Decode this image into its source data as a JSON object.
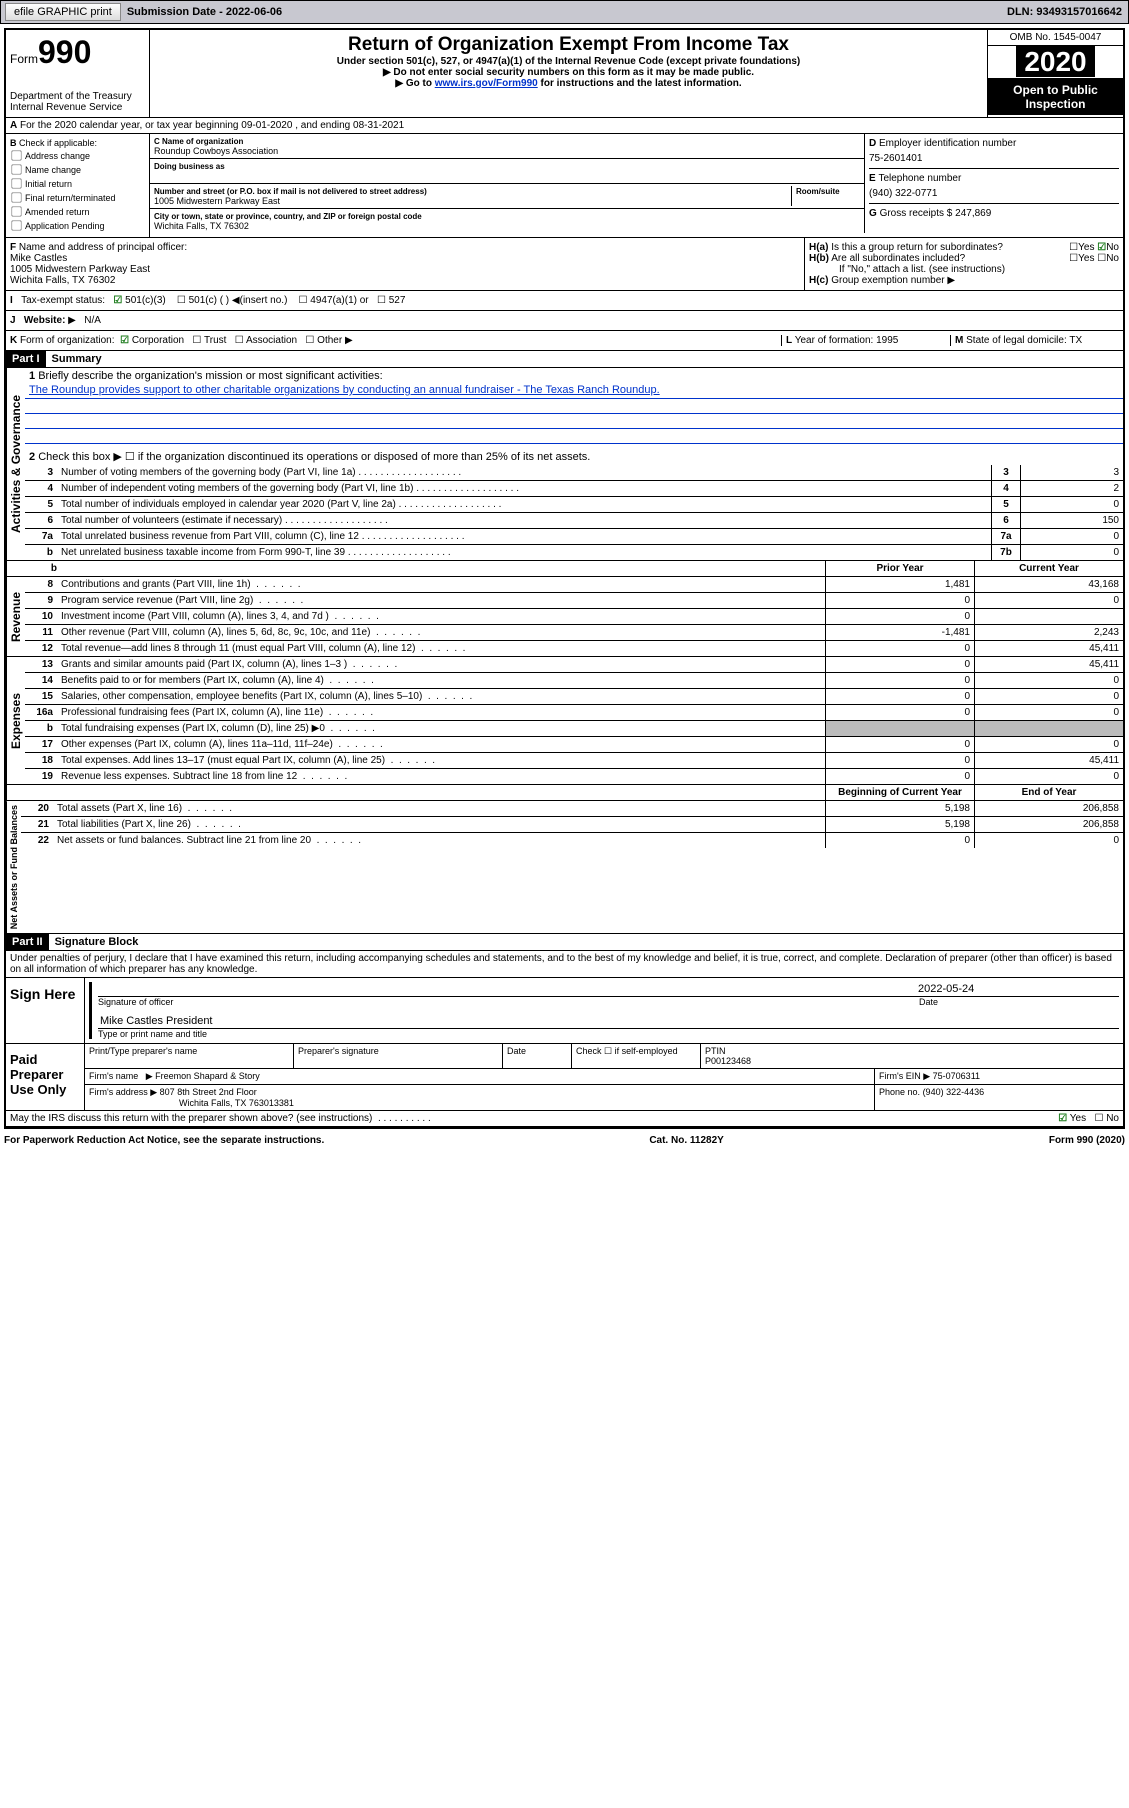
{
  "top": {
    "efile": "efile GRAPHIC print",
    "subLabel": "Submission Date - 2022-06-06",
    "dln": "DLN: 93493157016642"
  },
  "header": {
    "formWord": "Form",
    "formNum": "990",
    "dept": "Department of the Treasury\nInternal Revenue Service",
    "title": "Return of Organization Exempt From Income Tax",
    "line1": "Under section 501(c), 527, or 4947(a)(1) of the Internal Revenue Code (except private foundations)",
    "line2": "Do not enter social security numbers on this form as it may be made public.",
    "line3pre": "Go to ",
    "line3link": "www.irs.gov/Form990",
    "line3post": " for instructions and the latest information.",
    "omb": "OMB No. 1545-0047",
    "year": "2020",
    "inspection": "Open to Public Inspection"
  },
  "a": {
    "text": "For the 2020 calendar year, or tax year beginning 09-01-2020   , and ending 08-31-2021"
  },
  "b": {
    "label": "Check if applicable:",
    "items": [
      "Address change",
      "Name change",
      "Initial return",
      "Final return/terminated",
      "Amended return",
      "Application Pending"
    ]
  },
  "c": {
    "nameLbl": "Name of organization",
    "name": "Roundup Cowboys Association",
    "dbaLbl": "Doing business as",
    "dba": "",
    "streetLbl": "Number and street (or P.O. box if mail is not delivered to street address)",
    "roomLbl": "Room/suite",
    "street": "1005 Midwestern Parkway East",
    "cityLbl": "City or town, state or province, country, and ZIP or foreign postal code",
    "city": "Wichita Falls, TX  76302"
  },
  "d": {
    "lbl": "Employer identification number",
    "val": "75-2601401"
  },
  "e": {
    "lbl": "Telephone number",
    "val": "(940) 322-0771"
  },
  "g": {
    "lbl": "Gross receipts $",
    "val": "247,869"
  },
  "f": {
    "lbl": "Name and address of principal officer:",
    "name": "Mike Castles",
    "addr1": "1005 Midwestern Parkway East",
    "addr2": "Wichita Falls, TX  76302"
  },
  "h": {
    "a": "Is this a group return for subordinates?",
    "aYes": "Yes",
    "aNo": "No",
    "b": "Are all subordinates included?",
    "bYes": "Yes",
    "bNo": "No",
    "note": "If \"No,\" attach a list. (see instructions)",
    "c": "Group exemption number"
  },
  "i": {
    "lbl": "Tax-exempt status:",
    "o1": "501(c)(3)",
    "o2": "501(c) (  )",
    "insert": "(insert no.)",
    "o3": "4947(a)(1) or",
    "o4": "527"
  },
  "j": {
    "lbl": "Website:",
    "val": "N/A"
  },
  "k": {
    "lbl": "Form of organization:",
    "o1": "Corporation",
    "o2": "Trust",
    "o3": "Association",
    "o4": "Other"
  },
  "l": {
    "lbl": "Year of formation:",
    "val": "1995"
  },
  "m": {
    "lbl": "State of legal domicile:",
    "val": "TX"
  },
  "part1": {
    "num": "Part I",
    "title": "Summary"
  },
  "gov": {
    "label": "Activities & Governance",
    "l1": "Briefly describe the organization's mission or most significant activities:",
    "mission": "The Roundup provides support to other charitable organizations by conducting an annual fundraiser - The Texas Ranch Roundup.",
    "l2": "Check this box ▶ ☐  if the organization discontinued its operations or disposed of more than 25% of its net assets.",
    "rows": [
      {
        "n": "3",
        "t": "Number of voting members of the governing body (Part VI, line 1a)",
        "box": "3",
        "v": "3"
      },
      {
        "n": "4",
        "t": "Number of independent voting members of the governing body (Part VI, line 1b)",
        "box": "4",
        "v": "2"
      },
      {
        "n": "5",
        "t": "Total number of individuals employed in calendar year 2020 (Part V, line 2a)",
        "box": "5",
        "v": "0"
      },
      {
        "n": "6",
        "t": "Total number of volunteers (estimate if necessary)",
        "box": "6",
        "v": "150"
      },
      {
        "n": "7a",
        "t": "Total unrelated business revenue from Part VIII, column (C), line 12",
        "box": "7a",
        "v": "0"
      },
      {
        "n": "b",
        "t": "Net unrelated business taxable income from Form 990-T, line 39",
        "box": "7b",
        "v": "0"
      }
    ]
  },
  "hdr": {
    "prior": "Prior Year",
    "current": "Current Year"
  },
  "rev": {
    "label": "Revenue",
    "rows": [
      {
        "n": "8",
        "t": "Contributions and grants (Part VIII, line 1h)",
        "p": "1,481",
        "c": "43,168"
      },
      {
        "n": "9",
        "t": "Program service revenue (Part VIII, line 2g)",
        "p": "0",
        "c": "0"
      },
      {
        "n": "10",
        "t": "Investment income (Part VIII, column (A), lines 3, 4, and 7d )",
        "p": "0",
        "c": ""
      },
      {
        "n": "11",
        "t": "Other revenue (Part VIII, column (A), lines 5, 6d, 8c, 9c, 10c, and 11e)",
        "p": "-1,481",
        "c": "2,243"
      },
      {
        "n": "12",
        "t": "Total revenue—add lines 8 through 11 (must equal Part VIII, column (A), line 12)",
        "p": "0",
        "c": "45,411"
      }
    ]
  },
  "exp": {
    "label": "Expenses",
    "rows": [
      {
        "n": "13",
        "t": "Grants and similar amounts paid (Part IX, column (A), lines 1–3 )",
        "p": "0",
        "c": "45,411"
      },
      {
        "n": "14",
        "t": "Benefits paid to or for members (Part IX, column (A), line 4)",
        "p": "0",
        "c": "0"
      },
      {
        "n": "15",
        "t": "Salaries, other compensation, employee benefits (Part IX, column (A), lines 5–10)",
        "p": "0",
        "c": "0"
      },
      {
        "n": "16a",
        "t": "Professional fundraising fees (Part IX, column (A), line 11e)",
        "p": "0",
        "c": "0"
      },
      {
        "n": "b",
        "t": "Total fundraising expenses (Part IX, column (D), line 25) ▶0",
        "p": "gray",
        "c": "gray"
      },
      {
        "n": "17",
        "t": "Other expenses (Part IX, column (A), lines 11a–11d, 11f–24e)",
        "p": "0",
        "c": "0"
      },
      {
        "n": "18",
        "t": "Total expenses. Add lines 13–17 (must equal Part IX, column (A), line 25)",
        "p": "0",
        "c": "45,411"
      },
      {
        "n": "19",
        "t": "Revenue less expenses. Subtract line 18 from line 12",
        "p": "0",
        "c": "0"
      }
    ]
  },
  "net": {
    "label": "Net Assets or Fund Balances",
    "hdr1": "Beginning of Current Year",
    "hdr2": "End of Year",
    "rows": [
      {
        "n": "20",
        "t": "Total assets (Part X, line 16)",
        "p": "5,198",
        "c": "206,858"
      },
      {
        "n": "21",
        "t": "Total liabilities (Part X, line 26)",
        "p": "5,198",
        "c": "206,858"
      },
      {
        "n": "22",
        "t": "Net assets or fund balances. Subtract line 21 from line 20",
        "p": "0",
        "c": "0"
      }
    ]
  },
  "part2": {
    "num": "Part II",
    "title": "Signature Block"
  },
  "perjury": "Under penalties of perjury, I declare that I have examined this return, including accompanying schedules and statements, and to the best of my knowledge and belief, it is true, correct, and complete. Declaration of preparer (other than officer) is based on all information of which preparer has any knowledge.",
  "sign": {
    "label": "Sign Here",
    "sigLbl": "Signature of officer",
    "dateLbl": "Date",
    "date": "2022-05-24",
    "name": "Mike Castles President",
    "nameLbl": "Type or print name and title"
  },
  "prep": {
    "label": "Paid Preparer Use Only",
    "h1": "Print/Type preparer's name",
    "h2": "Preparer's signature",
    "h3": "Date",
    "h4": "Check ☐ if self-employed",
    "h5": "PTIN",
    "ptin": "P00123468",
    "firmLbl": "Firm's name",
    "firm": "Freemon Shapard & Story",
    "einLbl": "Firm's EIN",
    "ein": "75-0706311",
    "addrLbl": "Firm's address",
    "addr1": "807 8th Street 2nd Floor",
    "addr2": "Wichita Falls, TX  763013381",
    "phoneLbl": "Phone no.",
    "phone": "(940) 322-4436"
  },
  "discuss": {
    "q": "May the IRS discuss this return with the preparer shown above? (see instructions)",
    "yes": "Yes",
    "no": "No"
  },
  "footer": {
    "l": "For Paperwork Reduction Act Notice, see the separate instructions.",
    "c": "Cat. No. 11282Y",
    "r": "Form 990 (2020)"
  }
}
